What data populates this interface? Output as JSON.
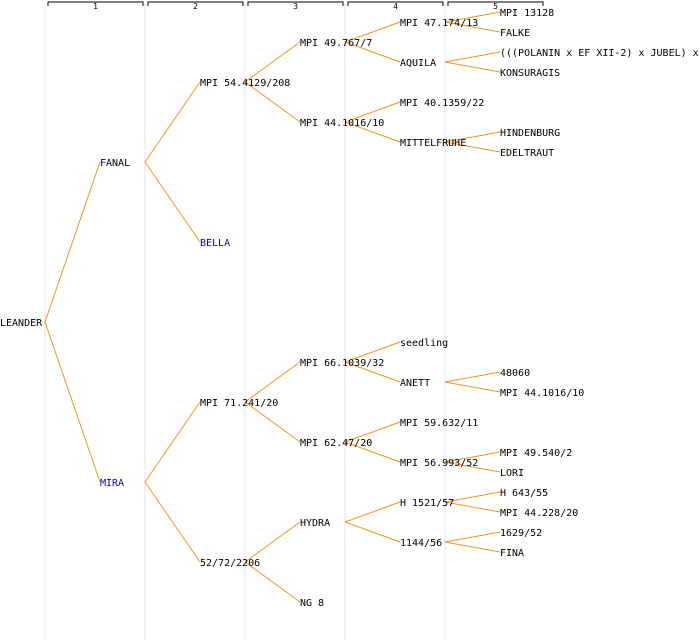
{
  "generations": [
    "1",
    "2",
    "3",
    "4",
    "5"
  ],
  "colors": {
    "edge": "#f0961e",
    "label": "#000000",
    "highlight": "#0000cc",
    "column_line": "#e6e6e6"
  },
  "tree": {
    "label": "LEANDER",
    "children": [
      {
        "label": "FANAL",
        "children": [
          {
            "label": "MPI 54.4129/208",
            "children": [
              {
                "label": "MPI 49.767/7",
                "children": [
                  {
                    "label": "MPI 47.174/13",
                    "children": [
                      {
                        "label": "MPI 13128"
                      },
                      {
                        "label": "FALKE"
                      }
                    ]
                  },
                  {
                    "label": "AQUILA",
                    "children": [
                      {
                        "label": "(((POLANIN x EF XII-2) x JUBEL) x"
                      },
                      {
                        "label": "KONSURAGIS"
                      }
                    ]
                  }
                ]
              },
              {
                "label": "MPI 44.1016/10",
                "children": [
                  {
                    "label": "MPI 40.1359/22"
                  },
                  {
                    "label": "MITTELFRUHE",
                    "children": [
                      {
                        "label": "HINDENBURG"
                      },
                      {
                        "label": "EDELTRAUT"
                      }
                    ]
                  }
                ]
              }
            ]
          },
          {
            "label": "BELLA",
            "highlight": true
          }
        ]
      },
      {
        "label": "MIRA",
        "highlight": true,
        "children": [
          {
            "label": "MPI 71.241/20",
            "children": [
              {
                "label": "MPI 66.1039/32",
                "children": [
                  {
                    "label": "seedling"
                  },
                  {
                    "label": "ANETT",
                    "children": [
                      {
                        "label": "48060"
                      },
                      {
                        "label": "MPI 44.1016/10"
                      }
                    ]
                  }
                ]
              },
              {
                "label": "MPI 62.47/20",
                "children": [
                  {
                    "label": "MPI 59.632/11"
                  },
                  {
                    "label": "MPI 56.993/52",
                    "children": [
                      {
                        "label": "MPI 49.540/2"
                      },
                      {
                        "label": "LORI"
                      }
                    ]
                  }
                ]
              }
            ]
          },
          {
            "label": "52/72/2206",
            "children": [
              {
                "label": "HYDRA",
                "children": [
                  {
                    "label": "H 1521/57",
                    "children": [
                      {
                        "label": "H 643/55"
                      },
                      {
                        "label": "MPI 44.228/20"
                      }
                    ]
                  },
                  {
                    "label": "1144/56",
                    "children": [
                      {
                        "label": "1629/52"
                      },
                      {
                        "label": "FINA"
                      }
                    ]
                  }
                ]
              },
              {
                "label": "NG 8"
              }
            ]
          }
        ]
      }
    ]
  }
}
